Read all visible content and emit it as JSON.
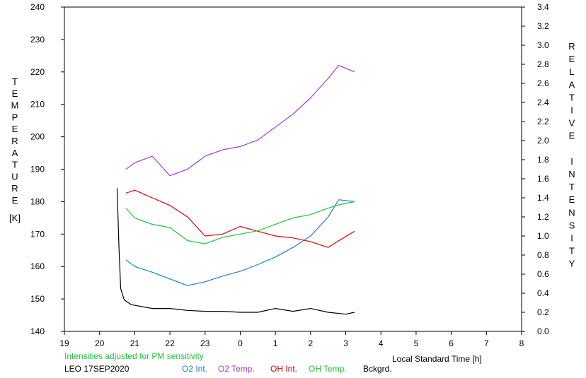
{
  "chart_data": {
    "type": "line",
    "station": "LEO 17SEP2020",
    "note": "Intensities adjusted for PM sensitivity",
    "xlabel": "Local Standard Time [h]",
    "ylabel_left": "TEMPERATURE",
    "ylabel_left_unit": "[K]",
    "ylabel_right": "RELATIVE INTENSITY",
    "x_ticks": [
      "19",
      "20",
      "21",
      "22",
      "23",
      "0",
      "1",
      "2",
      "3",
      "4",
      "5",
      "6",
      "7",
      "8"
    ],
    "x_range": [
      19,
      32
    ],
    "y_left_range": [
      140,
      240
    ],
    "y_left_ticks": [
      "140",
      "150",
      "160",
      "170",
      "180",
      "190",
      "200",
      "210",
      "220",
      "230",
      "240"
    ],
    "y_right_range": [
      0,
      3.4
    ],
    "y_right_ticks": [
      "0.0",
      "0.2",
      "0.4",
      "0.6",
      "0.8",
      "1.0",
      "1.2",
      "1.4",
      "1.6",
      "1.8",
      "2.0",
      "2.2",
      "2.4",
      "2.6",
      "2.8",
      "3.0",
      "3.2",
      "3.4"
    ],
    "colors": {
      "o2_int": "#1a7fd6",
      "o2_temp": "#9b3fd6",
      "oh_int": "#e00000",
      "oh_temp": "#22c43a",
      "bckgrd": "#000000",
      "note": "#22c43a"
    },
    "series": [
      {
        "name": "O2 Int.",
        "key": "o2_int",
        "axis": "right",
        "x": [
          20.75,
          21.0,
          21.5,
          22.0,
          22.5,
          23.0,
          23.5,
          24.0,
          24.5,
          25.0,
          25.5,
          26.0,
          26.5,
          26.8,
          27.25
        ],
        "y": [
          0.75,
          0.68,
          0.62,
          0.55,
          0.48,
          0.52,
          0.58,
          0.63,
          0.7,
          0.78,
          0.88,
          1.0,
          1.2,
          1.38,
          1.36
        ]
      },
      {
        "name": "O2 Temp.",
        "key": "o2_temp",
        "axis": "left",
        "x": [
          20.75,
          21.0,
          21.5,
          22.0,
          22.5,
          23.0,
          23.5,
          24.0,
          24.5,
          25.0,
          25.5,
          26.0,
          26.5,
          26.8,
          27.25
        ],
        "y": [
          190,
          192,
          194,
          188,
          190,
          194,
          196,
          197,
          199,
          203,
          207,
          212,
          218,
          222,
          220
        ]
      },
      {
        "name": "OH Int.",
        "key": "oh_int",
        "axis": "right",
        "x": [
          20.75,
          21.0,
          21.5,
          22.0,
          22.5,
          23.0,
          23.5,
          24.0,
          24.5,
          25.0,
          25.5,
          26.0,
          26.5,
          26.8,
          27.25
        ],
        "y": [
          1.45,
          1.48,
          1.4,
          1.32,
          1.2,
          1.0,
          1.02,
          1.1,
          1.05,
          1.0,
          0.98,
          0.94,
          0.88,
          0.95,
          1.05
        ]
      },
      {
        "name": "OH Temp.",
        "key": "oh_temp",
        "axis": "left",
        "x": [
          20.75,
          21.0,
          21.5,
          22.0,
          22.5,
          23.0,
          23.5,
          24.0,
          24.5,
          25.0,
          25.5,
          26.0,
          26.5,
          26.8,
          27.25
        ],
        "y": [
          178,
          175,
          173,
          172,
          168,
          167,
          169,
          170,
          171,
          173,
          175,
          176,
          178,
          179,
          180
        ]
      },
      {
        "name": "Bckgrd.",
        "key": "bckgrd",
        "axis": "right",
        "x": [
          20.5,
          20.55,
          20.6,
          20.7,
          20.9,
          21.5,
          22.0,
          22.5,
          23.0,
          23.5,
          24.0,
          24.5,
          25.0,
          25.5,
          26.0,
          26.5,
          27.0,
          27.25
        ],
        "y": [
          1.5,
          0.9,
          0.45,
          0.33,
          0.28,
          0.24,
          0.24,
          0.22,
          0.21,
          0.21,
          0.2,
          0.2,
          0.24,
          0.21,
          0.24,
          0.2,
          0.18,
          0.2
        ]
      }
    ]
  }
}
